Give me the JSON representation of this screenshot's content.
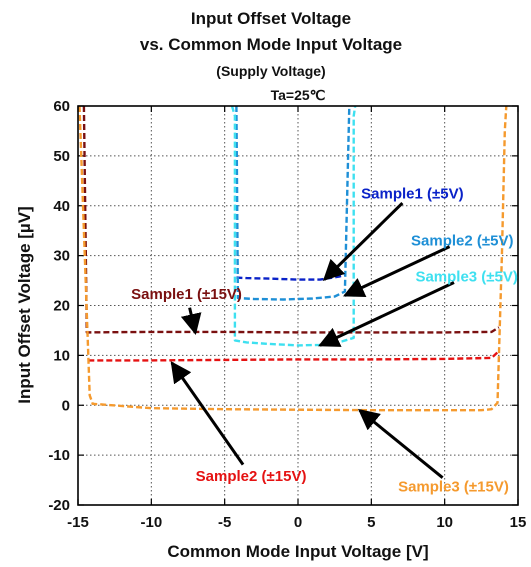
{
  "chart_data": {
    "type": "line",
    "title_lines": [
      "Input Offset Voltage",
      "vs. Common Mode Input Voltage"
    ],
    "subtitle": "(Supply Voltage)",
    "condition": "Ta=25℃",
    "xlabel": "Common Mode Input Voltage [V]",
    "ylabel": "Input Offset Voltage [µV]",
    "xlim": [
      -15,
      15
    ],
    "ylim": [
      -20,
      60
    ],
    "xticks": [
      -15,
      -10,
      -5,
      0,
      5,
      10,
      15
    ],
    "yticks": [
      -20,
      -10,
      0,
      10,
      20,
      30,
      40,
      50,
      60
    ],
    "grid": true,
    "series": [
      {
        "name": "Sample1 (±5V)",
        "color": "#0a22c8",
        "dash": true,
        "x": [
          -4.2,
          -3.5,
          -2,
          0,
          1.5,
          2.8,
          3.2
        ],
        "y": [
          25.6,
          25.5,
          25.4,
          25.2,
          25.2,
          25.8,
          26.2
        ]
      },
      {
        "name": "Sample2 (±5V)",
        "color": "#1e8fd6",
        "dash": true,
        "x": [
          -4.2,
          -4.1,
          -3,
          -1,
          1,
          2.5,
          3.2,
          3.5
        ],
        "y": [
          60,
          21.5,
          21.3,
          21.2,
          21.4,
          21.8,
          22.8,
          60
        ]
      },
      {
        "name": "Sample3 (±5V)",
        "color": "#3ee0f0",
        "dash": true,
        "x": [
          -4.5,
          -4.3,
          -4.3,
          -3.5,
          -2,
          0,
          1.5,
          3,
          3.8,
          3.8,
          3.9
        ],
        "y": [
          60,
          58,
          13,
          12.6,
          12.3,
          12.0,
          12.1,
          12.8,
          13.5,
          58,
          60
        ]
      },
      {
        "name": "Sample1 (±15V)",
        "color": "#7a1010",
        "dash": true,
        "x": [
          -14.6,
          -14.4,
          -10,
          -5,
          0,
          5,
          10,
          13.2,
          13.7
        ],
        "y": [
          60,
          14.6,
          14.7,
          14.7,
          14.6,
          14.6,
          14.6,
          14.7,
          15.6
        ]
      },
      {
        "name": "Sample2 (±15V)",
        "color": "#e51212",
        "dash": true,
        "x": [
          -14.3,
          -10,
          -5,
          0,
          5,
          10,
          13.2,
          13.6
        ],
        "y": [
          9.0,
          9.0,
          9.1,
          9.2,
          9.2,
          9.3,
          9.5,
          10.6
        ]
      },
      {
        "name": "Sample3 (±15V)",
        "color": "#f59a2e",
        "dash": true,
        "x": [
          -14.9,
          -14.2,
          -14.0,
          -10,
          -5,
          0,
          5,
          10,
          12.5,
          13.2,
          13.6,
          13.9,
          14.1,
          14.2
        ],
        "y": [
          60,
          2,
          0.3,
          -0.6,
          -0.8,
          -0.9,
          -1.0,
          -1.0,
          -1.0,
          -0.8,
          0.5,
          30,
          55,
          60
        ]
      }
    ],
    "annotations": [
      {
        "text": "Sample1 (±5V)",
        "color": "#0a22c8",
        "tx": 7.8,
        "ty": 42.5,
        "ax": 1.8,
        "ay": 25.2
      },
      {
        "text": "Sample2 (±5V)",
        "color": "#1e8fd6",
        "tx": 11.2,
        "ty": 33.0,
        "ax": 3.2,
        "ay": 22.0
      },
      {
        "text": "Sample3 (±5V)",
        "color": "#3ee0f0",
        "tx": 11.5,
        "ty": 25.8,
        "ax": 1.5,
        "ay": 12.0
      },
      {
        "text": "Sample1 (±15V)",
        "color": "#7a1010",
        "tx": -7.6,
        "ty": 22.3,
        "ax": -7.0,
        "ay": 14.5
      },
      {
        "text": "Sample2 (±15V)",
        "color": "#e51212",
        "tx": -3.2,
        "ty": -14.2,
        "ax": -8.6,
        "ay": 8.5
      },
      {
        "text": "Sample3 (±15V)",
        "color": "#f59a2e",
        "tx": 10.6,
        "ty": -16.3,
        "ax": 4.2,
        "ay": -1.0
      }
    ]
  }
}
